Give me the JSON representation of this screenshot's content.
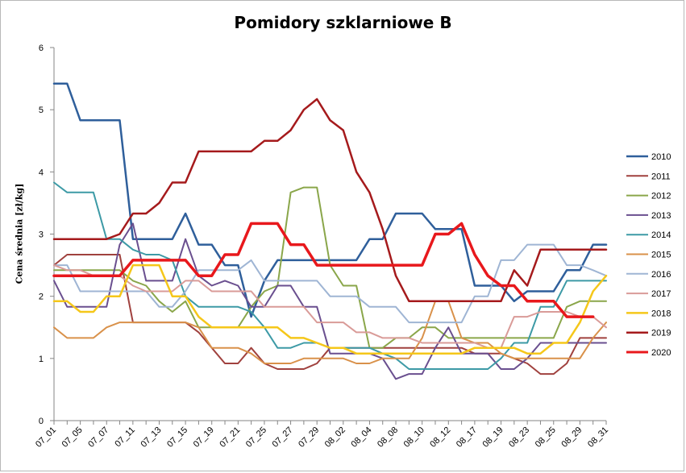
{
  "chart_data": {
    "type": "line",
    "title": "Pomidory szklarniowe B",
    "ylabel": "Cena średnia [zł/kg]",
    "xlabel": "",
    "ylim": [
      0,
      6
    ],
    "yticks": [
      0,
      1,
      2,
      3,
      4,
      5,
      6
    ],
    "grid": false,
    "legend_position": "right",
    "x": [
      "07_01",
      "07_03",
      "07_05",
      "07_06",
      "07_07",
      "07_10",
      "07_11",
      "07_12",
      "07_13",
      "07_14",
      "07_15",
      "07_17",
      "07_19",
      "07_20",
      "07_21",
      "07_24",
      "07_25",
      "07_26",
      "07_27",
      "07_28",
      "07_29",
      "07_31",
      "08_02",
      "08_03",
      "08_04",
      "08_07",
      "08_08",
      "08_09",
      "08_10",
      "08_11",
      "08_12",
      "08_14",
      "08_17",
      "08_18",
      "08_19",
      "08_21",
      "08_23",
      "08_24",
      "08_25",
      "08_28",
      "08_29",
      "08_30",
      "08_31"
    ],
    "x_tick_labels": [
      "07_01",
      "07_05",
      "07_07",
      "07_11",
      "07_13",
      "07_15",
      "07_19",
      "07_21",
      "07_25",
      "07_27",
      "07_29",
      "08_02",
      "08_04",
      "08_08",
      "08_10",
      "08_12",
      "08_17",
      "08_19",
      "08_23",
      "08_25",
      "08_29",
      "08_31"
    ],
    "series": [
      {
        "name": "2010",
        "color": "#2f5f9b",
        "width": 2.5,
        "values": [
          5.42,
          5.42,
          4.83,
          4.83,
          4.83,
          4.83,
          2.92,
          2.92,
          2.92,
          2.92,
          3.33,
          2.83,
          2.83,
          2.5,
          2.5,
          1.67,
          2.25,
          2.58,
          2.58,
          2.58,
          2.58,
          2.58,
          2.58,
          2.58,
          2.92,
          2.92,
          3.33,
          3.33,
          3.33,
          3.08,
          3.08,
          3.08,
          2.17,
          2.17,
          2.17,
          1.92,
          2.08,
          2.08,
          2.08,
          2.42,
          2.42,
          2.83,
          2.83
        ]
      },
      {
        "name": "2011",
        "color": "#a0413e",
        "width": 2,
        "values": [
          2.5,
          2.67,
          2.67,
          2.67,
          2.67,
          2.67,
          1.58,
          1.58,
          1.58,
          1.58,
          1.58,
          1.42,
          1.17,
          0.92,
          0.92,
          1.17,
          0.92,
          0.83,
          0.83,
          0.83,
          0.92,
          1.17,
          1.17,
          1.17,
          1.17,
          1.17,
          1.17,
          1.17,
          1.17,
          1.17,
          1.17,
          1.17,
          1.08,
          1.08,
          1.08,
          1.0,
          0.92,
          0.75,
          0.75,
          0.92,
          1.33,
          1.33,
          1.33
        ]
      },
      {
        "name": "2012",
        "color": "#8aa64a",
        "width": 2,
        "values": [
          2.42,
          2.42,
          2.42,
          2.42,
          2.42,
          2.42,
          2.25,
          2.17,
          1.92,
          1.75,
          1.92,
          1.5,
          1.5,
          1.5,
          1.5,
          1.83,
          2.08,
          2.17,
          3.67,
          3.75,
          3.75,
          2.5,
          2.17,
          2.17,
          1.17,
          1.17,
          1.33,
          1.33,
          1.5,
          1.5,
          1.33,
          1.33,
          1.33,
          1.33,
          1.33,
          1.33,
          1.33,
          1.33,
          1.33,
          1.83,
          1.92,
          1.92,
          1.92
        ]
      },
      {
        "name": "2013",
        "color": "#6a4f8f",
        "width": 2,
        "values": [
          2.25,
          1.83,
          1.83,
          1.83,
          1.83,
          2.83,
          3.17,
          2.25,
          2.25,
          2.25,
          2.92,
          2.33,
          2.17,
          2.25,
          2.17,
          1.83,
          1.83,
          2.17,
          2.17,
          1.83,
          1.83,
          1.08,
          1.08,
          1.08,
          1.08,
          1.0,
          0.67,
          0.75,
          0.75,
          1.17,
          1.5,
          1.08,
          1.08,
          1.08,
          0.83,
          0.83,
          1.0,
          1.25,
          1.25,
          1.25,
          1.25,
          1.25,
          1.25
        ]
      },
      {
        "name": "2014",
        "color": "#3d9aa6",
        "width": 2,
        "values": [
          3.83,
          3.67,
          3.67,
          3.67,
          2.92,
          2.92,
          2.75,
          2.67,
          2.67,
          2.58,
          2.0,
          1.83,
          1.83,
          1.83,
          1.83,
          1.75,
          1.5,
          1.17,
          1.17,
          1.25,
          1.25,
          1.17,
          1.17,
          1.17,
          1.17,
          1.08,
          1.0,
          0.83,
          0.83,
          0.83,
          0.83,
          0.83,
          0.83,
          0.83,
          1.0,
          1.25,
          1.25,
          1.83,
          1.83,
          2.25,
          2.25,
          2.25,
          2.25
        ]
      },
      {
        "name": "2015",
        "color": "#d9914a",
        "width": 2,
        "values": [
          1.5,
          1.33,
          1.33,
          1.33,
          1.5,
          1.58,
          1.58,
          1.58,
          1.58,
          1.58,
          1.58,
          1.5,
          1.17,
          1.17,
          1.17,
          1.08,
          0.92,
          0.92,
          0.92,
          1.0,
          1.0,
          1.0,
          1.0,
          0.92,
          0.92,
          1.0,
          1.0,
          1.0,
          1.33,
          1.92,
          1.92,
          1.33,
          1.25,
          1.25,
          1.08,
          1.0,
          1.0,
          1.0,
          1.0,
          1.0,
          1.0,
          1.33,
          1.58
        ]
      },
      {
        "name": "2016",
        "color": "#9fb5d4",
        "width": 2,
        "values": [
          2.5,
          2.5,
          2.08,
          2.08,
          2.08,
          2.08,
          2.08,
          2.08,
          1.83,
          1.83,
          2.08,
          2.42,
          2.42,
          2.42,
          2.42,
          2.58,
          2.25,
          2.25,
          2.25,
          2.25,
          2.25,
          2.0,
          2.0,
          2.0,
          1.83,
          1.83,
          1.83,
          1.58,
          1.58,
          1.58,
          1.58,
          1.58,
          2.0,
          2.0,
          2.58,
          2.58,
          2.83,
          2.83,
          2.83,
          2.5,
          2.5,
          2.42,
          2.33
        ]
      },
      {
        "name": "2017",
        "color": "#d99b98",
        "width": 2,
        "values": [
          2.5,
          2.42,
          2.42,
          2.33,
          2.33,
          2.33,
          2.17,
          2.08,
          2.08,
          2.08,
          2.25,
          2.25,
          2.08,
          2.08,
          2.08,
          2.08,
          1.83,
          1.83,
          1.83,
          1.83,
          1.58,
          1.58,
          1.58,
          1.42,
          1.42,
          1.33,
          1.33,
          1.33,
          1.25,
          1.25,
          1.25,
          1.25,
          1.25,
          1.17,
          1.17,
          1.67,
          1.67,
          1.75,
          1.75,
          1.75,
          1.67,
          1.67,
          1.5
        ]
      },
      {
        "name": "2018",
        "color": "#f5c71a",
        "width": 2.5,
        "values": [
          1.92,
          1.92,
          1.75,
          1.75,
          2.0,
          2.0,
          2.5,
          2.5,
          2.5,
          2.0,
          2.0,
          1.67,
          1.5,
          1.5,
          1.5,
          1.5,
          1.5,
          1.5,
          1.33,
          1.33,
          1.25,
          1.17,
          1.17,
          1.08,
          1.08,
          1.08,
          1.08,
          1.08,
          1.08,
          1.08,
          1.08,
          1.08,
          1.17,
          1.17,
          1.17,
          1.17,
          1.08,
          1.08,
          1.25,
          1.25,
          1.58,
          2.08,
          2.33
        ]
      },
      {
        "name": "2019",
        "color": "#a51a1c",
        "width": 2.5,
        "values": [
          2.92,
          2.92,
          2.92,
          2.92,
          2.92,
          3.0,
          3.33,
          3.33,
          3.5,
          3.83,
          3.83,
          4.33,
          4.33,
          4.33,
          4.33,
          4.33,
          4.5,
          4.5,
          4.67,
          5.0,
          5.17,
          4.83,
          4.67,
          4.0,
          3.67,
          3.08,
          2.33,
          1.92,
          1.92,
          1.92,
          1.92,
          1.92,
          1.92,
          1.92,
          1.92,
          2.42,
          2.17,
          2.75,
          2.75,
          2.75,
          2.75,
          2.75,
          2.75
        ]
      },
      {
        "name": "2020",
        "color": "#e8181c",
        "width": 3.5,
        "values": [
          2.33,
          2.33,
          2.33,
          2.33,
          2.33,
          2.33,
          2.58,
          2.58,
          2.58,
          2.58,
          2.58,
          2.33,
          2.33,
          2.67,
          2.67,
          3.17,
          3.17,
          3.17,
          2.83,
          2.83,
          2.5,
          2.5,
          2.5,
          2.5,
          2.5,
          2.5,
          2.5,
          2.5,
          2.5,
          3.0,
          3.0,
          3.17,
          2.67,
          2.33,
          2.17,
          2.17,
          1.92,
          1.92,
          1.92,
          1.67,
          1.67,
          1.67,
          null
        ]
      }
    ]
  }
}
